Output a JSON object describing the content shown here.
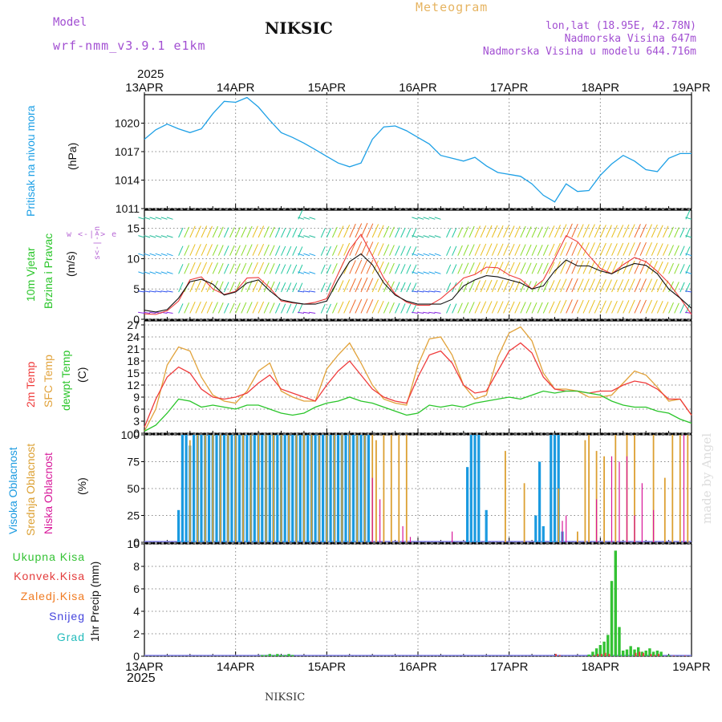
{
  "header": {
    "model_label": "Model",
    "model_name": "wrf-nmm_v3.9.1 e1km",
    "station": "NIKSIC",
    "meteogram": "Meteogram",
    "lonlat": "lon,lat (18.95E, 42.78N)",
    "elevation": "Nadmorska Visina 647m",
    "model_elevation": "Nadmorska Visina u modelu 644.716m"
  },
  "footer": {
    "station": "NIKSIC",
    "credit": "made by Angel"
  },
  "axis": {
    "year_top": "2025",
    "year_bottom": "2025",
    "dates": [
      "13APR",
      "14APR",
      "15APR",
      "16APR",
      "17APR",
      "18APR",
      "19APR"
    ]
  },
  "colors": {
    "pressure": "#1ea0e6",
    "t2m": "#ef3b3b",
    "sfc": "#e1a23a",
    "dewpt": "#2ac52a",
    "high_cloud": "#1a9ae0",
    "mid_cloud": "#dca032",
    "low_cloud": "#d8189a",
    "total_rain": "#33c233",
    "conv_rain": "#e33b3b",
    "frz_rain": "#f07b22",
    "snow": "#4444dd",
    "hail": "#22bbbb",
    "wind_label": "#b86ad6"
  },
  "panels": {
    "pressure": {
      "label": "Pritisak na nivou mora",
      "unit": "(hPa)"
    },
    "wind": {
      "label1": "10m Vjetar",
      "label2": "Brzina i Pravac",
      "unit": "(m/s)",
      "compass": "w <-|-> e",
      "compass2": "s<-|->n"
    },
    "temp": {
      "label1": "2m Temp",
      "label2": "SFC Temp",
      "label3": "dewpt Temp",
      "unit": "(C)"
    },
    "cloud": {
      "label1": "Visoka Oblacnost",
      "label2": "Srednja Oblacnost",
      "label3": "Niska Oblacnost",
      "unit": "(%)"
    },
    "precip": {
      "labels": [
        "Ukupna Kisa",
        "Konvek.Kisa",
        "Zaledj.Kisa",
        "Snijeg",
        "Grad"
      ],
      "unit": "1hr Precip (mm)"
    }
  },
  "chart_data": [
    {
      "type": "line",
      "title": "Pritisak na nivou mora",
      "ylabel": "(hPa)",
      "ylim": [
        1011,
        1023
      ],
      "yticks": [
        1011,
        1014,
        1017,
        1020
      ],
      "x_hours": [
        0,
        3,
        6,
        9,
        12,
        15,
        18,
        21,
        24,
        27,
        30,
        33,
        36,
        39,
        42,
        45,
        48,
        51,
        54,
        57,
        60,
        63,
        66,
        69,
        72,
        75,
        78,
        81,
        84,
        87,
        90,
        93,
        96,
        99,
        102,
        105,
        108,
        111,
        114,
        117,
        120,
        123,
        126,
        129,
        132,
        135,
        138,
        141,
        144
      ],
      "series": [
        {
          "values": [
            1018.3,
            1019.3,
            1019.9,
            1019.4,
            1019.0,
            1019.4,
            1021.0,
            1022.3,
            1022.2,
            1022.7,
            1021.7,
            1020.3,
            1019.0,
            1018.5,
            1017.9,
            1017.2,
            1016.5,
            1015.8,
            1015.4,
            1015.8,
            1018.3,
            1019.6,
            1019.7,
            1019.2,
            1018.5,
            1017.8,
            1016.6,
            1016.3,
            1016.0,
            1016.4,
            1015.5,
            1014.8,
            1014.6,
            1014.4,
            1013.6,
            1012.4,
            1011.7,
            1013.6,
            1012.8,
            1012.9,
            1014.5,
            1015.7,
            1016.6,
            1016.0,
            1015.1,
            1014.9,
            1016.3,
            1016.8,
            1016.8
          ]
        }
      ]
    },
    {
      "type": "line",
      "title": "10m Vjetar Brzina i Pravac",
      "ylabel": "(m/s)",
      "ylim": [
        0,
        18
      ],
      "yticks": [
        0,
        5,
        10,
        15
      ],
      "x_hours": [
        0,
        3,
        6,
        9,
        12,
        15,
        18,
        21,
        24,
        27,
        30,
        33,
        36,
        39,
        42,
        45,
        48,
        51,
        54,
        57,
        60,
        63,
        66,
        69,
        72,
        75,
        78,
        81,
        84,
        87,
        90,
        93,
        96,
        99,
        102,
        105,
        108,
        111,
        114,
        117,
        120,
        123,
        126,
        129,
        132,
        135,
        138,
        141,
        144
      ],
      "series": [
        {
          "name": "speed",
          "values": [
            1.5,
            1.2,
            1.6,
            3.5,
            6.2,
            6.6,
            5.8,
            4.0,
            4.5,
            6.0,
            6.5,
            4.7,
            3.2,
            2.8,
            2.5,
            2.5,
            3.0,
            6.5,
            9.5,
            10.8,
            9.0,
            6.0,
            4.0,
            3.0,
            2.5,
            2.5,
            2.5,
            3.3,
            5.5,
            6.5,
            7.2,
            7.0,
            6.5,
            6.0,
            5.0,
            5.5,
            8.0,
            9.8,
            8.8,
            8.8,
            8.0,
            7.5,
            8.5,
            9.2,
            8.9,
            7.5,
            5.0,
            3.5,
            1.8
          ]
        },
        {
          "name": "gust",
          "values": [
            0.9,
            0.8,
            1.4,
            3.0,
            6.5,
            7.0,
            5.0,
            4.1,
            4.6,
            6.8,
            6.9,
            5.2,
            3.0,
            2.7,
            2.5,
            2.8,
            3.4,
            7.5,
            11.5,
            14.0,
            10.5,
            6.8,
            4.2,
            2.8,
            2.3,
            2.3,
            3.4,
            5.0,
            6.8,
            7.4,
            8.6,
            8.5,
            7.3,
            6.6,
            5.0,
            6.5,
            10.0,
            13.8,
            12.8,
            10.5,
            8.4,
            7.5,
            9.0,
            10.2,
            9.5,
            7.9,
            6.0,
            3.5,
            0.8
          ]
        }
      ]
    },
    {
      "type": "line",
      "title": "2m Temp / SFC Temp / dewpt Temp",
      "ylabel": "(C)",
      "ylim": [
        0,
        28
      ],
      "yticks": [
        0,
        3,
        6,
        9,
        12,
        15,
        18,
        21,
        24,
        27
      ],
      "x_hours": [
        0,
        3,
        6,
        9,
        12,
        15,
        18,
        21,
        24,
        27,
        30,
        33,
        36,
        39,
        42,
        45,
        48,
        51,
        54,
        57,
        60,
        63,
        66,
        69,
        72,
        75,
        78,
        81,
        84,
        87,
        90,
        93,
        96,
        99,
        102,
        105,
        108,
        111,
        114,
        117,
        120,
        123,
        126,
        129,
        132,
        135,
        138,
        141,
        144
      ],
      "series": [
        {
          "name": "2m Temp",
          "values": [
            1.5,
            8.5,
            14.0,
            16.5,
            15.0,
            11.0,
            9.0,
            8.5,
            9.0,
            10.0,
            12.5,
            14.5,
            11.0,
            10.0,
            9.0,
            8.0,
            12.0,
            15.5,
            18.0,
            14.5,
            11.0,
            9.0,
            8.0,
            7.5,
            14.0,
            19.5,
            20.5,
            17.5,
            12.0,
            10.0,
            10.5,
            15.5,
            20.5,
            22.5,
            20.0,
            14.0,
            11.0,
            10.5,
            10.5,
            10.0,
            10.5,
            10.5,
            12.0,
            13.0,
            12.5,
            11.0,
            8.5,
            8.5,
            4.5
          ]
        },
        {
          "name": "SFC Temp",
          "values": [
            0.5,
            6.0,
            17.0,
            21.5,
            20.5,
            14.0,
            9.5,
            8.0,
            7.5,
            10.5,
            15.5,
            17.5,
            10.5,
            9.0,
            8.0,
            8.0,
            16.0,
            19.5,
            22.5,
            17.5,
            12.0,
            8.5,
            7.5,
            7.0,
            17.0,
            23.5,
            24.0,
            19.5,
            12.0,
            8.5,
            9.5,
            19.0,
            25.0,
            26.5,
            23.0,
            15.0,
            11.0,
            11.0,
            10.5,
            9.0,
            9.0,
            9.5,
            12.5,
            15.5,
            14.5,
            11.5,
            8.0,
            8.5,
            4.5
          ]
        },
        {
          "name": "dewpt Temp",
          "values": [
            0.5,
            2.0,
            5.0,
            8.5,
            8.0,
            6.5,
            7.0,
            6.5,
            6.0,
            7.0,
            7.0,
            6.0,
            5.0,
            4.5,
            5.0,
            6.5,
            7.5,
            8.0,
            9.0,
            8.0,
            7.5,
            6.5,
            5.5,
            4.5,
            5.0,
            7.0,
            6.5,
            7.0,
            6.5,
            7.5,
            8.0,
            8.5,
            9.0,
            8.5,
            9.5,
            10.5,
            10.0,
            10.5,
            10.5,
            10.0,
            9.5,
            8.0,
            7.0,
            6.5,
            6.5,
            5.5,
            5.0,
            3.5,
            2.5
          ]
        }
      ]
    },
    {
      "type": "bar",
      "title": "Visoka / Srednja / Niska Oblacnost",
      "ylabel": "(%)",
      "ylim": [
        0,
        100
      ],
      "yticks": [
        0,
        25,
        50,
        75,
        100
      ],
      "series": [
        {
          "name": "Visoka Oblacnost",
          "x_hours": [
            9,
            10,
            11,
            12,
            13,
            14,
            15,
            16,
            17,
            18,
            19,
            20,
            21,
            22,
            23,
            24,
            25,
            26,
            27,
            28,
            29,
            30,
            31,
            32,
            33,
            34,
            35,
            36,
            37,
            38,
            39,
            40,
            41,
            42,
            43,
            44,
            45,
            46,
            47,
            48,
            49,
            50,
            51,
            52,
            53,
            54,
            55,
            56,
            57,
            58,
            59,
            85,
            86,
            87,
            88,
            90,
            103,
            104,
            105,
            107,
            108,
            109,
            110
          ],
          "values": [
            30,
            100,
            100,
            90,
            100,
            100,
            100,
            100,
            100,
            100,
            100,
            100,
            100,
            100,
            100,
            100,
            100,
            100,
            100,
            100,
            100,
            100,
            100,
            100,
            100,
            100,
            100,
            100,
            100,
            100,
            100,
            100,
            100,
            100,
            100,
            100,
            100,
            100,
            100,
            100,
            100,
            100,
            100,
            100,
            100,
            100,
            100,
            100,
            100,
            100,
            100,
            70,
            100,
            100,
            100,
            30,
            25,
            75,
            15,
            100,
            100,
            100,
            10
          ]
        },
        {
          "name": "Srednja Oblacnost",
          "x_hours": [
            12,
            14,
            16,
            18,
            20,
            22,
            24,
            26,
            28,
            30,
            32,
            34,
            36,
            38,
            40,
            42,
            44,
            46,
            48,
            50,
            52,
            54,
            56,
            58,
            60,
            61,
            63,
            65,
            67,
            69,
            95,
            100,
            109,
            114,
            116,
            117,
            119,
            121,
            124,
            127,
            129,
            134,
            137,
            139,
            141,
            143
          ],
          "values": [
            95,
            100,
            100,
            100,
            100,
            100,
            100,
            100,
            100,
            100,
            100,
            100,
            100,
            100,
            100,
            100,
            100,
            100,
            100,
            100,
            100,
            100,
            100,
            100,
            100,
            95,
            100,
            100,
            100,
            100,
            85,
            55,
            50,
            10,
            95,
            100,
            85,
            80,
            100,
            100,
            100,
            100,
            60,
            100,
            100,
            100
          ]
        },
        {
          "name": "Niska Oblacnost",
          "x_hours": [
            60,
            62,
            68,
            70,
            81,
            110,
            111,
            119,
            123,
            125,
            127,
            129,
            131,
            134,
            142
          ],
          "values": [
            60,
            40,
            15,
            5,
            10,
            20,
            25,
            40,
            80,
            75,
            80,
            25,
            55,
            30,
            100
          ]
        }
      ]
    },
    {
      "type": "bar",
      "title": "1hr Precip",
      "ylabel": "1hr Precip (mm)",
      "ylim": [
        0,
        10
      ],
      "yticks": [
        0,
        2,
        4,
        6,
        8,
        10
      ],
      "series": [
        {
          "name": "Ukupna Kisa",
          "x_hours": [
            31,
            32,
            33,
            34,
            35,
            36,
            37,
            38,
            39,
            117,
            118,
            119,
            120,
            121,
            122,
            123,
            124,
            125,
            126,
            127,
            128,
            129,
            130,
            131,
            132,
            133,
            134,
            135,
            136,
            138
          ],
          "values": [
            0.1,
            0.1,
            0.2,
            0.1,
            0.2,
            0.1,
            0.1,
            0.2,
            0.1,
            0.15,
            0.4,
            0.7,
            1.0,
            1.3,
            1.9,
            6.7,
            9.4,
            2.6,
            0.5,
            0.6,
            0.9,
            0.6,
            0.8,
            0.4,
            0.5,
            0.7,
            0.4,
            0.5,
            0.4,
            0.1
          ]
        },
        {
          "name": "Konvek.Kisa",
          "x_hours": [
            108,
            109,
            118,
            119,
            120,
            121,
            122,
            129,
            130,
            131,
            133,
            134,
            135,
            139,
            142
          ],
          "values": [
            0.2,
            0.1,
            0.1,
            0.2,
            0.2,
            0.3,
            0.2,
            0.3,
            0.4,
            0.3,
            0.2,
            0.1,
            0.2,
            0.05,
            0.05
          ]
        }
      ]
    }
  ]
}
